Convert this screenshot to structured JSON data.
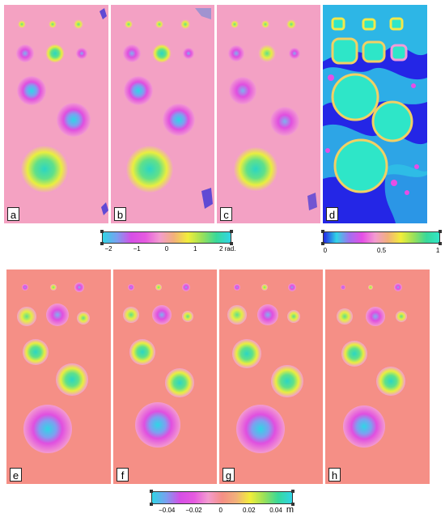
{
  "panels": [
    {
      "label": "a"
    },
    {
      "label": "b"
    },
    {
      "label": "c"
    },
    {
      "label": "d"
    },
    {
      "label": "e"
    },
    {
      "label": "f"
    },
    {
      "label": "g"
    },
    {
      "label": "h"
    }
  ],
  "colorbars": {
    "phase": {
      "ticks": [
        "−2",
        "−1",
        "0",
        "1",
        "2 rad."
      ]
    },
    "coherence": {
      "ticks": [
        "0",
        "0.5",
        "1"
      ]
    },
    "displacement": {
      "ticks": [
        "−0.04",
        "−0.02",
        "0",
        "0.02",
        "0.04"
      ],
      "unit": "m"
    }
  },
  "colors": {
    "background_pink": "#f39bd0",
    "background_salmon": "#f58f86",
    "cyan": "#31d5e6",
    "magenta": "#e64ee6",
    "green": "#38d99a",
    "yellow": "#f2ee3a",
    "blue": "#1a24e6"
  }
}
